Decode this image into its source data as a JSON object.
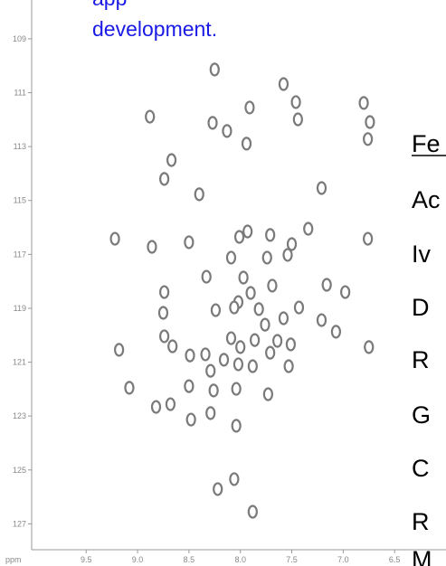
{
  "chart_data": {
    "type": "scatter",
    "x_label": "ppm",
    "color": "#7a7a7a",
    "x": [
      8.25,
      7.58,
      8.88,
      6.8,
      8.27,
      7.91,
      8.13,
      7.46,
      7.44,
      6.74,
      6.76,
      7.94,
      8.67,
      8.74,
      8.4,
      7.21,
      9.22,
      6.76,
      7.93,
      7.71,
      7.5,
      7.34,
      8.86,
      8.5,
      8.01,
      7.74,
      7.54,
      8.09,
      8.33,
      7.97,
      7.69,
      8.74,
      7.16,
      6.98,
      7.9,
      8.02,
      8.24,
      8.06,
      7.43,
      8.75,
      7.82,
      7.58,
      7.76,
      7.21,
      8.74,
      7.07,
      8.09,
      7.86,
      7.64,
      8.66,
      8.34,
      8.0,
      7.51,
      7.71,
      6.75,
      9.18,
      8.49,
      8.16,
      8.02,
      8.29,
      7.88,
      7.53,
      9.08,
      8.5,
      8.26,
      8.04,
      7.73,
      8.82,
      8.68,
      8.29,
      8.48,
      8.04,
      8.22,
      8.06,
      7.88
    ],
    "values": [
      110.14,
      110.68,
      111.89,
      111.38,
      112.12,
      111.55,
      112.42,
      111.35,
      111.99,
      112.09,
      112.72,
      112.89,
      113.5,
      114.2,
      114.77,
      114.54,
      116.42,
      116.42,
      116.15,
      116.28,
      116.62,
      116.05,
      116.72,
      116.55,
      116.35,
      117.12,
      117.02,
      117.12,
      117.83,
      117.86,
      118.16,
      118.4,
      118.13,
      118.4,
      118.43,
      118.77,
      119.07,
      118.97,
      118.97,
      119.17,
      119.03,
      119.37,
      119.61,
      119.44,
      120.04,
      119.87,
      120.11,
      120.18,
      120.21,
      120.41,
      120.71,
      120.44,
      120.34,
      120.65,
      120.44,
      120.54,
      120.75,
      120.91,
      121.08,
      121.32,
      121.15,
      121.15,
      121.95,
      121.89,
      122.05,
      121.99,
      122.19,
      122.66,
      122.56,
      122.89,
      123.13,
      123.36,
      125.71,
      125.34,
      126.55
    ],
    "xlim": [
      10.03,
      6.0
    ],
    "ylim": [
      107.56,
      127.96
    ],
    "xticks": [
      9.5,
      {
        "value": 9,
        "label": "9.0"
      },
      8.5,
      {
        "value": 8,
        "label": "8.0"
      },
      7.5,
      {
        "value": 7,
        "label": "7.0"
      },
      6.5
    ],
    "yticks": [
      109,
      111,
      113,
      115,
      117,
      119,
      121,
      123,
      125,
      127
    ],
    "annotations": [
      "app",
      "development.",
      "Fe",
      "Ac",
      "Iv",
      "D",
      "R",
      "G",
      "C",
      "R",
      "M"
    ]
  }
}
